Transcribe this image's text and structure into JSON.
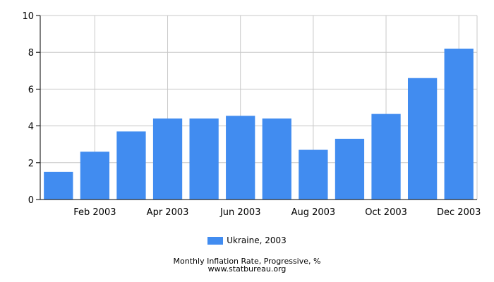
{
  "chart_data": {
    "type": "bar",
    "categories": [
      "Jan 2003",
      "Feb 2003",
      "Mar 2003",
      "Apr 2003",
      "May 2003",
      "Jun 2003",
      "Jul 2003",
      "Aug 2003",
      "Sep 2003",
      "Oct 2003",
      "Nov 2003",
      "Dec 2003"
    ],
    "x_tick_labels": [
      "Feb 2003",
      "Apr 2003",
      "Jun 2003",
      "Aug 2003",
      "Oct 2003",
      "Dec 2003"
    ],
    "series": [
      {
        "name": "Ukraine, 2003",
        "color": "#418cf0",
        "values": [
          1.5,
          2.6,
          3.7,
          4.4,
          4.4,
          4.55,
          4.4,
          2.7,
          3.3,
          4.65,
          6.6,
          8.2
        ]
      }
    ],
    "ylim": [
      0,
      10
    ],
    "y_ticks": [
      0,
      2,
      4,
      6,
      8,
      10
    ],
    "grid": true,
    "legend_position": "bottom-center",
    "title": "Monthly Inflation Rate, Progressive, %",
    "source": "www.statbureau.org",
    "xlabel": "",
    "ylabel": ""
  }
}
